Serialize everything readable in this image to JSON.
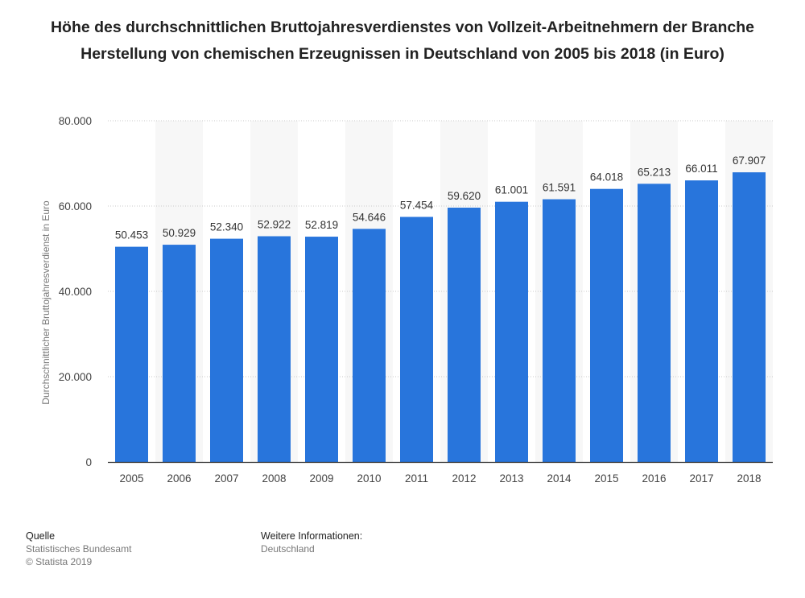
{
  "title": "Höhe des durchschnittlichen Bruttojahresverdienstes von Vollzeit-Arbeitnehmern der Branche Herstellung von chemischen Erzeugnissen in Deutschland von 2005 bis 2018 (in Euro)",
  "chart_data": {
    "type": "bar",
    "title": "Höhe des durchschnittlichen Bruttojahresverdienstes von Vollzeit-Arbeitnehmern der Branche Herstellung von chemischen Erzeugnissen in Deutschland von 2005 bis 2018 (in Euro)",
    "xlabel": "",
    "ylabel": "Durchschnittlicher Bruttojahresverdienst in Euro",
    "categories": [
      "2005",
      "2006",
      "2007",
      "2008",
      "2009",
      "2010",
      "2011",
      "2012",
      "2013",
      "2014",
      "2015",
      "2016",
      "2017",
      "2018"
    ],
    "values": [
      50453,
      50929,
      52340,
      52922,
      52819,
      54646,
      57454,
      59620,
      61001,
      61591,
      64018,
      65213,
      66011,
      67907
    ],
    "value_labels": [
      "50.453",
      "50.929",
      "52.340",
      "52.922",
      "52.819",
      "54.646",
      "57.454",
      "59.620",
      "61.001",
      "61.591",
      "64.018",
      "65.213",
      "66.011",
      "67.907"
    ],
    "ylim": [
      0,
      80000
    ],
    "yticks": [
      0,
      20000,
      40000,
      60000,
      80000
    ],
    "ytick_labels": [
      "0",
      "20.000",
      "40.000",
      "60.000",
      "80.000"
    ],
    "grid": true,
    "bar_color": "#2875dc",
    "alt_band_color": "#f7f7f7"
  },
  "footer": {
    "source_heading": "Quelle",
    "source_lines": [
      "Statistisches Bundesamt",
      "© Statista 2019"
    ],
    "info_heading": "Weitere Informationen:",
    "info_lines": [
      "Deutschland"
    ]
  }
}
